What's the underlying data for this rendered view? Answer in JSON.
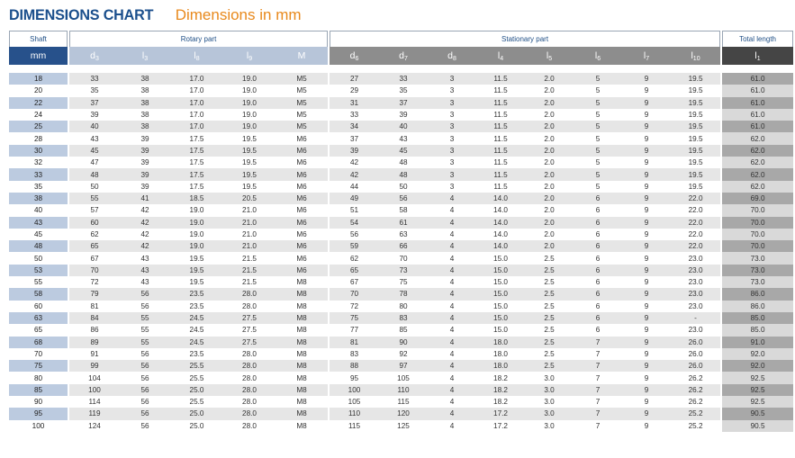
{
  "title": {
    "main": "DIMENSIONS CHART",
    "sub": "Dimensions in mm"
  },
  "groups": {
    "shaft": "Shaft",
    "rotary": "Rotary part",
    "stationary": "Stationary part",
    "total": "Total length"
  },
  "symbols": {
    "unit": "mm",
    "d3": {
      "b": "d",
      "s": "3"
    },
    "l3": {
      "b": "l",
      "s": "3"
    },
    "l8": {
      "b": "l",
      "s": "8"
    },
    "l9": {
      "b": "l",
      "s": "9"
    },
    "M": {
      "b": "M",
      "s": ""
    },
    "d6": {
      "b": "d",
      "s": "6"
    },
    "d7": {
      "b": "d",
      "s": "7"
    },
    "d8": {
      "b": "d",
      "s": "8"
    },
    "l4": {
      "b": "l",
      "s": "4"
    },
    "l5": {
      "b": "l",
      "s": "5"
    },
    "l6": {
      "b": "l",
      "s": "6"
    },
    "l7": {
      "b": "l",
      "s": "7"
    },
    "l10": {
      "b": "l",
      "s": "10"
    },
    "l1": {
      "b": "l",
      "s": "1"
    }
  },
  "rows": [
    [
      "18",
      "33",
      "38",
      "17.0",
      "19.0",
      "M5",
      "27",
      "33",
      "3",
      "11.5",
      "2.0",
      "5",
      "9",
      "19.5",
      "61.0"
    ],
    [
      "20",
      "35",
      "38",
      "17.0",
      "19.0",
      "M5",
      "29",
      "35",
      "3",
      "11.5",
      "2.0",
      "5",
      "9",
      "19.5",
      "61.0"
    ],
    [
      "22",
      "37",
      "38",
      "17.0",
      "19.0",
      "M5",
      "31",
      "37",
      "3",
      "11.5",
      "2.0",
      "5",
      "9",
      "19.5",
      "61.0"
    ],
    [
      "24",
      "39",
      "38",
      "17.0",
      "19.0",
      "M5",
      "33",
      "39",
      "3",
      "11.5",
      "2.0",
      "5",
      "9",
      "19.5",
      "61.0"
    ],
    [
      "25",
      "40",
      "38",
      "17.0",
      "19.0",
      "M5",
      "34",
      "40",
      "3",
      "11.5",
      "2.0",
      "5",
      "9",
      "19.5",
      "61.0"
    ],
    [
      "28",
      "43",
      "39",
      "17.5",
      "19.5",
      "M6",
      "37",
      "43",
      "3",
      "11.5",
      "2.0",
      "5",
      "9",
      "19.5",
      "62.0"
    ],
    [
      "30",
      "45",
      "39",
      "17.5",
      "19.5",
      "M6",
      "39",
      "45",
      "3",
      "11.5",
      "2.0",
      "5",
      "9",
      "19.5",
      "62.0"
    ],
    [
      "32",
      "47",
      "39",
      "17.5",
      "19.5",
      "M6",
      "42",
      "48",
      "3",
      "11.5",
      "2.0",
      "5",
      "9",
      "19.5",
      "62.0"
    ],
    [
      "33",
      "48",
      "39",
      "17.5",
      "19.5",
      "M6",
      "42",
      "48",
      "3",
      "11.5",
      "2.0",
      "5",
      "9",
      "19.5",
      "62.0"
    ],
    [
      "35",
      "50",
      "39",
      "17.5",
      "19.5",
      "M6",
      "44",
      "50",
      "3",
      "11.5",
      "2.0",
      "5",
      "9",
      "19.5",
      "62.0"
    ],
    [
      "38",
      "55",
      "41",
      "18.5",
      "20.5",
      "M6",
      "49",
      "56",
      "4",
      "14.0",
      "2.0",
      "6",
      "9",
      "22.0",
      "69.0"
    ],
    [
      "40",
      "57",
      "42",
      "19.0",
      "21.0",
      "M6",
      "51",
      "58",
      "4",
      "14.0",
      "2.0",
      "6",
      "9",
      "22.0",
      "70.0"
    ],
    [
      "43",
      "60",
      "42",
      "19.0",
      "21.0",
      "M6",
      "54",
      "61",
      "4",
      "14.0",
      "2.0",
      "6",
      "9",
      "22.0",
      "70.0"
    ],
    [
      "45",
      "62",
      "42",
      "19.0",
      "21.0",
      "M6",
      "56",
      "63",
      "4",
      "14.0",
      "2.0",
      "6",
      "9",
      "22.0",
      "70.0"
    ],
    [
      "48",
      "65",
      "42",
      "19.0",
      "21.0",
      "M6",
      "59",
      "66",
      "4",
      "14.0",
      "2.0",
      "6",
      "9",
      "22.0",
      "70.0"
    ],
    [
      "50",
      "67",
      "43",
      "19.5",
      "21.5",
      "M6",
      "62",
      "70",
      "4",
      "15.0",
      "2.5",
      "6",
      "9",
      "23.0",
      "73.0"
    ],
    [
      "53",
      "70",
      "43",
      "19.5",
      "21.5",
      "M6",
      "65",
      "73",
      "4",
      "15.0",
      "2.5",
      "6",
      "9",
      "23.0",
      "73.0"
    ],
    [
      "55",
      "72",
      "43",
      "19.5",
      "21.5",
      "M8",
      "67",
      "75",
      "4",
      "15.0",
      "2.5",
      "6",
      "9",
      "23.0",
      "73.0"
    ],
    [
      "58",
      "79",
      "56",
      "23.5",
      "28.0",
      "M8",
      "70",
      "78",
      "4",
      "15.0",
      "2.5",
      "6",
      "9",
      "23.0",
      "86.0"
    ],
    [
      "60",
      "81",
      "56",
      "23.5",
      "28.0",
      "M8",
      "72",
      "80",
      "4",
      "15.0",
      "2.5",
      "6",
      "9",
      "23.0",
      "86.0"
    ],
    [
      "63",
      "84",
      "55",
      "24.5",
      "27.5",
      "M8",
      "75",
      "83",
      "4",
      "15.0",
      "2.5",
      "6",
      "9",
      "-",
      "85.0"
    ],
    [
      "65",
      "86",
      "55",
      "24.5",
      "27.5",
      "M8",
      "77",
      "85",
      "4",
      "15.0",
      "2.5",
      "6",
      "9",
      "23.0",
      "85.0"
    ],
    [
      "68",
      "89",
      "55",
      "24.5",
      "27.5",
      "M8",
      "81",
      "90",
      "4",
      "18.0",
      "2.5",
      "7",
      "9",
      "26.0",
      "91.0"
    ],
    [
      "70",
      "91",
      "56",
      "23.5",
      "28.0",
      "M8",
      "83",
      "92",
      "4",
      "18.0",
      "2.5",
      "7",
      "9",
      "26.0",
      "92.0"
    ],
    [
      "75",
      "99",
      "56",
      "25.5",
      "28.0",
      "M8",
      "88",
      "97",
      "4",
      "18.0",
      "2.5",
      "7",
      "9",
      "26.0",
      "92.0"
    ],
    [
      "80",
      "104",
      "56",
      "25.5",
      "28.0",
      "M8",
      "95",
      "105",
      "4",
      "18.2",
      "3.0",
      "7",
      "9",
      "26.2",
      "92.5"
    ],
    [
      "85",
      "100",
      "56",
      "25.0",
      "28.0",
      "M8",
      "100",
      "110",
      "4",
      "18.2",
      "3.0",
      "7",
      "9",
      "26.2",
      "92.5"
    ],
    [
      "90",
      "114",
      "56",
      "25.5",
      "28.0",
      "M8",
      "105",
      "115",
      "4",
      "18.2",
      "3.0",
      "7",
      "9",
      "26.2",
      "92.5"
    ],
    [
      "95",
      "119",
      "56",
      "25.0",
      "28.0",
      "M8",
      "110",
      "120",
      "4",
      "17.2",
      "3.0",
      "7",
      "9",
      "25.2",
      "90.5"
    ],
    [
      "100",
      "124",
      "56",
      "25.0",
      "28.0",
      "M8",
      "115",
      "125",
      "4",
      "17.2",
      "3.0",
      "7",
      "9",
      "25.2",
      "90.5"
    ]
  ]
}
